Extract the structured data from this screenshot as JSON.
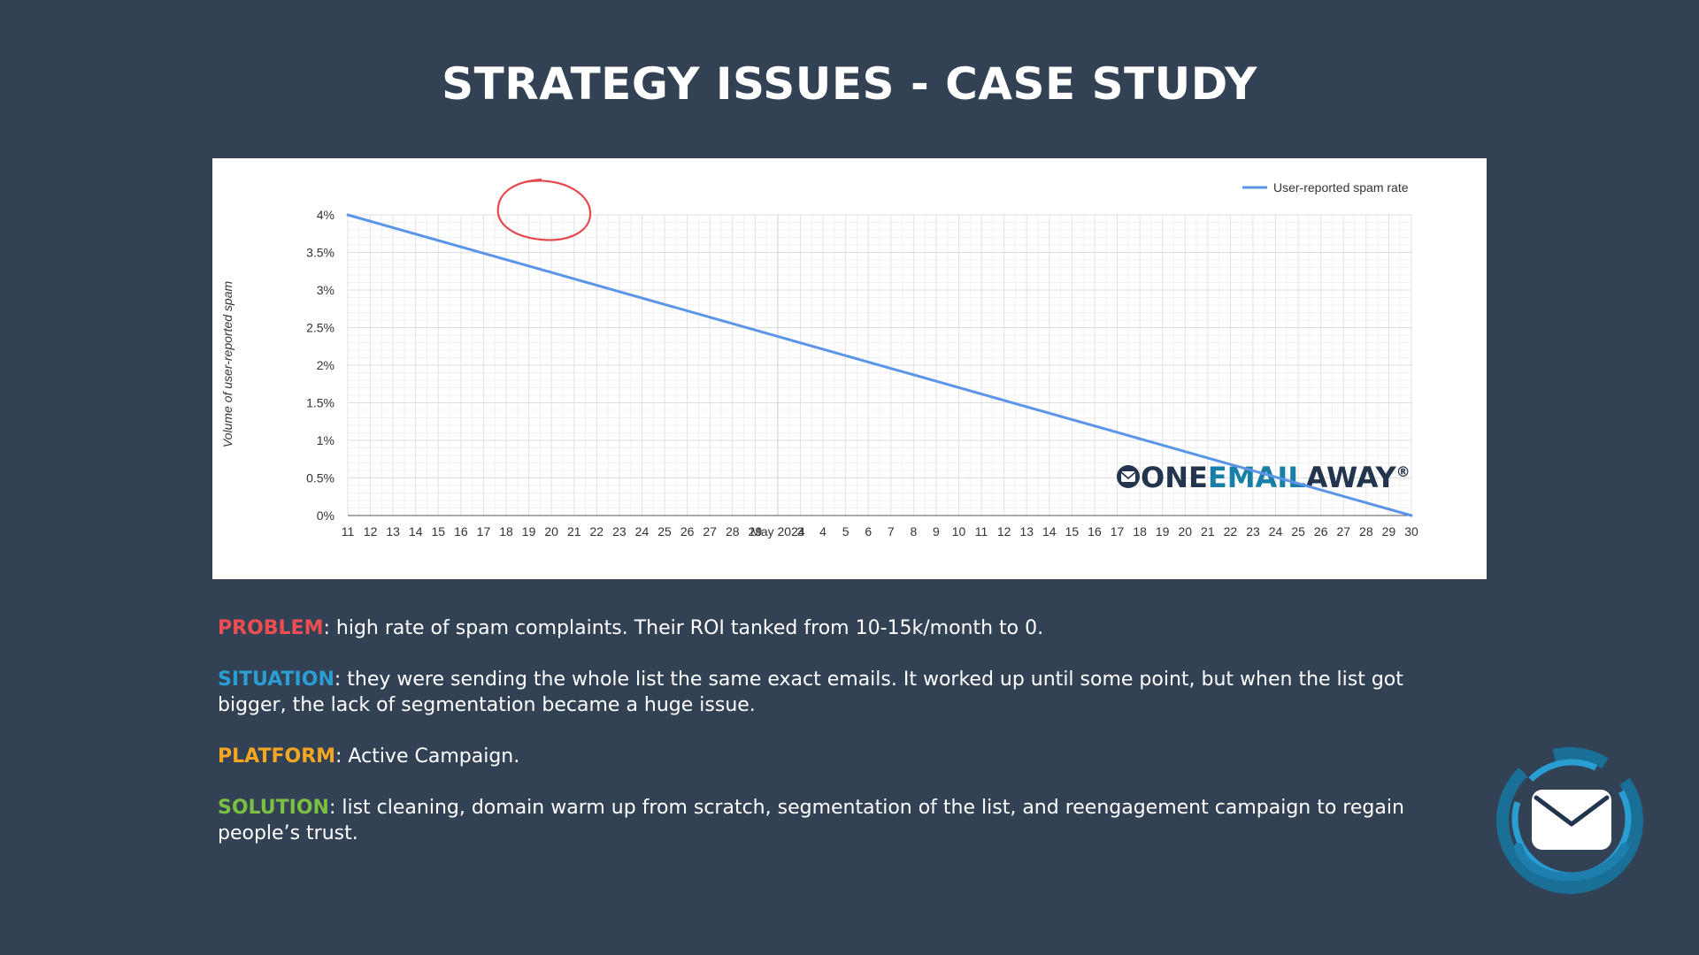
{
  "title": "STRATEGY ISSUES - CASE STUDY",
  "watermark": {
    "part1": "ONE",
    "part2": "EMAIL",
    "part3": "AWAY",
    "reg": "®"
  },
  "chart_data": {
    "type": "line",
    "ylabel": "Volume of user-reported spam",
    "y_ticks": [
      "0%",
      "0.5%",
      "1%",
      "1.5%",
      "2%",
      "2.5%",
      "3%",
      "3.5%",
      "4%"
    ],
    "ylim": [
      0,
      4
    ],
    "x_ticks": [
      "11",
      "12",
      "13",
      "14",
      "15",
      "16",
      "17",
      "18",
      "19",
      "20",
      "21",
      "22",
      "23",
      "24",
      "25",
      "26",
      "27",
      "28",
      "29",
      "May 2024",
      "3",
      "4",
      "5",
      "6",
      "7",
      "8",
      "9",
      "10",
      "11",
      "12",
      "13",
      "14",
      "15",
      "16",
      "17",
      "18",
      "19",
      "20",
      "21",
      "22",
      "23",
      "24",
      "25",
      "26",
      "27",
      "28",
      "29",
      "30"
    ],
    "series": [
      {
        "name": "User-reported spam rate",
        "color": "#5b95e8",
        "x": [
          "11",
          "30"
        ],
        "values": [
          4,
          0
        ]
      }
    ],
    "legend_position": "top-right",
    "grid": true,
    "annotation": "red circle around 4% start point"
  },
  "notes": [
    {
      "label": "PROBLEM",
      "text": ": high rate of spam complaints. Their ROI tanked from 10-15k/month to 0."
    },
    {
      "label": "SITUATION",
      "text": ": they were sending the whole list the same exact emails. It worked up until some point, but when the list got bigger, the lack of segmentation became a huge issue."
    },
    {
      "label": "PLATFORM",
      "text": ": Active Campaign."
    },
    {
      "label": "SOLUTION",
      "text": ": list cleaning, domain warm up from scratch, segmentation of the list, and reengagement campaign to regain people’s trust."
    }
  ],
  "colors": {
    "background": "#334155",
    "problem": "#ef4d52",
    "situation": "#2a9ed3",
    "platform": "#f5a623",
    "solution": "#7ac143",
    "brand_dark": "#22344e",
    "brand_teal": "#1a7fa6"
  }
}
